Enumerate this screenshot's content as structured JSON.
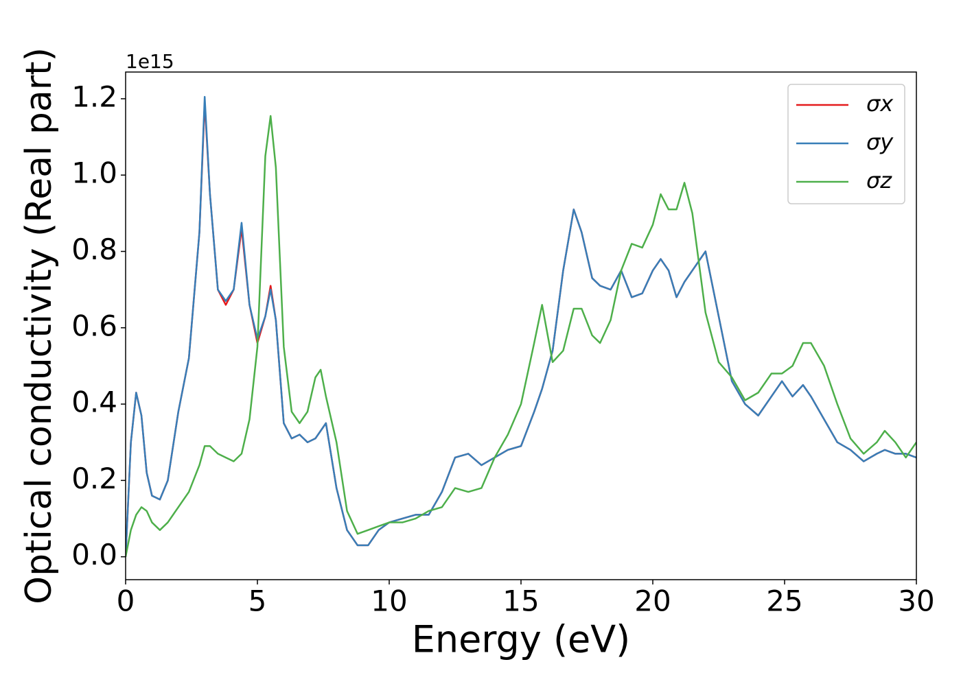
{
  "chart_data": {
    "type": "line",
    "x_label": "Energy (eV)",
    "y_label": "Optical conductivity (Real part)",
    "y_offset_label": "1e15",
    "xlim": [
      0,
      30
    ],
    "xticks": [
      0,
      5,
      10,
      15,
      20,
      25,
      30
    ],
    "ylim": [
      -0.06,
      1.27
    ],
    "yticks": [
      {
        "value": 0,
        "label": "0.0"
      },
      0.2,
      0.4,
      0.6,
      0.8,
      {
        "value": 1,
        "label": "1.0"
      },
      1.2
    ],
    "legend": "upper right",
    "grid": false,
    "x": [
      0,
      0.2,
      0.4,
      0.6,
      0.8,
      1.0,
      1.3,
      1.6,
      2.0,
      2.4,
      2.8,
      3.0,
      3.2,
      3.5,
      3.8,
      4.1,
      4.4,
      4.7,
      5.0,
      5.3,
      5.5,
      5.7,
      6.0,
      6.3,
      6.6,
      6.9,
      7.2,
      7.4,
      7.6,
      8.0,
      8.4,
      8.8,
      9.2,
      9.6,
      10.0,
      10.5,
      11.0,
      11.5,
      12.0,
      12.5,
      13.0,
      13.5,
      14.0,
      14.5,
      15.0,
      15.5,
      15.8,
      16.2,
      16.6,
      17.0,
      17.3,
      17.7,
      18.0,
      18.4,
      18.8,
      19.2,
      19.6,
      20.0,
      20.3,
      20.6,
      20.9,
      21.2,
      21.5,
      22.0,
      22.5,
      23.0,
      23.5,
      24.0,
      24.5,
      24.9,
      25.3,
      25.7,
      26.0,
      26.5,
      27.0,
      27.5,
      28.0,
      28.5,
      28.8,
      29.2,
      29.6,
      30.0
    ],
    "series": [
      {
        "name": "σx",
        "color": "#e41a1c",
        "values": [
          0.0,
          0.3,
          0.43,
          0.37,
          0.22,
          0.16,
          0.15,
          0.2,
          0.38,
          0.52,
          0.85,
          1.19,
          0.95,
          0.7,
          0.66,
          0.7,
          0.86,
          0.66,
          0.56,
          0.63,
          0.71,
          0.62,
          0.35,
          0.31,
          0.32,
          0.3,
          0.31,
          0.33,
          0.35,
          0.18,
          0.07,
          0.03,
          0.03,
          0.07,
          0.09,
          0.1,
          0.11,
          0.11,
          0.17,
          0.26,
          0.27,
          0.24,
          0.26,
          0.28,
          0.29,
          0.38,
          0.44,
          0.54,
          0.75,
          0.91,
          0.85,
          0.73,
          0.71,
          0.7,
          0.75,
          0.68,
          0.69,
          0.75,
          0.78,
          0.75,
          0.68,
          0.72,
          0.75,
          0.8,
          0.63,
          0.46,
          0.4,
          0.37,
          0.42,
          0.46,
          0.42,
          0.45,
          0.42,
          0.36,
          0.3,
          0.28,
          0.25,
          0.27,
          0.28,
          0.27,
          0.27,
          0.26
        ]
      },
      {
        "name": "σy",
        "color": "#377eb8",
        "values": [
          0.0,
          0.3,
          0.43,
          0.37,
          0.22,
          0.16,
          0.15,
          0.2,
          0.38,
          0.52,
          0.85,
          1.205,
          0.95,
          0.7,
          0.67,
          0.7,
          0.875,
          0.66,
          0.57,
          0.63,
          0.7,
          0.62,
          0.35,
          0.31,
          0.32,
          0.3,
          0.31,
          0.33,
          0.35,
          0.18,
          0.07,
          0.03,
          0.03,
          0.07,
          0.09,
          0.1,
          0.11,
          0.11,
          0.17,
          0.26,
          0.27,
          0.24,
          0.26,
          0.28,
          0.29,
          0.38,
          0.44,
          0.54,
          0.75,
          0.91,
          0.85,
          0.73,
          0.71,
          0.7,
          0.75,
          0.68,
          0.69,
          0.75,
          0.78,
          0.75,
          0.68,
          0.72,
          0.75,
          0.8,
          0.63,
          0.46,
          0.4,
          0.37,
          0.42,
          0.46,
          0.42,
          0.45,
          0.42,
          0.36,
          0.3,
          0.28,
          0.25,
          0.27,
          0.28,
          0.27,
          0.27,
          0.26
        ]
      },
      {
        "name": "σz",
        "color": "#4daf4a",
        "values": [
          0.0,
          0.07,
          0.11,
          0.13,
          0.12,
          0.09,
          0.07,
          0.09,
          0.13,
          0.17,
          0.24,
          0.29,
          0.29,
          0.27,
          0.26,
          0.25,
          0.27,
          0.36,
          0.55,
          1.05,
          1.155,
          1.02,
          0.55,
          0.38,
          0.35,
          0.38,
          0.47,
          0.49,
          0.42,
          0.3,
          0.12,
          0.06,
          0.07,
          0.08,
          0.09,
          0.09,
          0.1,
          0.12,
          0.13,
          0.18,
          0.17,
          0.18,
          0.26,
          0.32,
          0.4,
          0.56,
          0.66,
          0.51,
          0.54,
          0.65,
          0.65,
          0.58,
          0.56,
          0.62,
          0.75,
          0.82,
          0.81,
          0.87,
          0.95,
          0.91,
          0.91,
          0.98,
          0.9,
          0.64,
          0.51,
          0.47,
          0.41,
          0.43,
          0.48,
          0.48,
          0.5,
          0.56,
          0.56,
          0.5,
          0.4,
          0.31,
          0.27,
          0.3,
          0.33,
          0.3,
          0.26,
          0.3
        ]
      }
    ]
  }
}
